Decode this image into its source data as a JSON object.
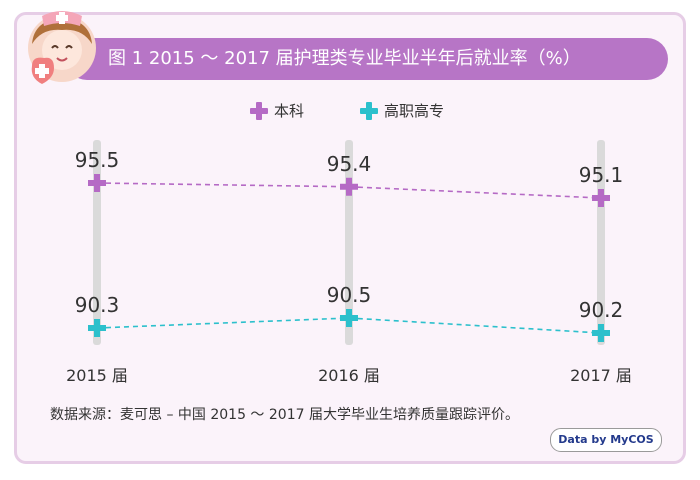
{
  "header": {
    "title": "图 1  2015 ～ 2017 届护理类专业毕业半年后就业率（%）"
  },
  "chart_data": {
    "type": "line",
    "categories": [
      "2015 届",
      "2016 届",
      "2017 届"
    ],
    "series": [
      {
        "name": "本科",
        "values": [
          95.5,
          95.4,
          95.1
        ],
        "color": "#b56ac5",
        "marker": "plus"
      },
      {
        "name": "高职高专",
        "values": [
          90.3,
          90.5,
          90.2
        ],
        "color": "#2cc0cc",
        "marker": "plus"
      }
    ],
    "legend_position": "top-center",
    "line_style": "dashed",
    "grid": "vertical-bands"
  },
  "footer": {
    "source": "数据来源：麦可思 – 中国 2015 ～ 2017 届大学毕业生培养质量跟踪评价。",
    "logo": "Data by MyCOS"
  }
}
